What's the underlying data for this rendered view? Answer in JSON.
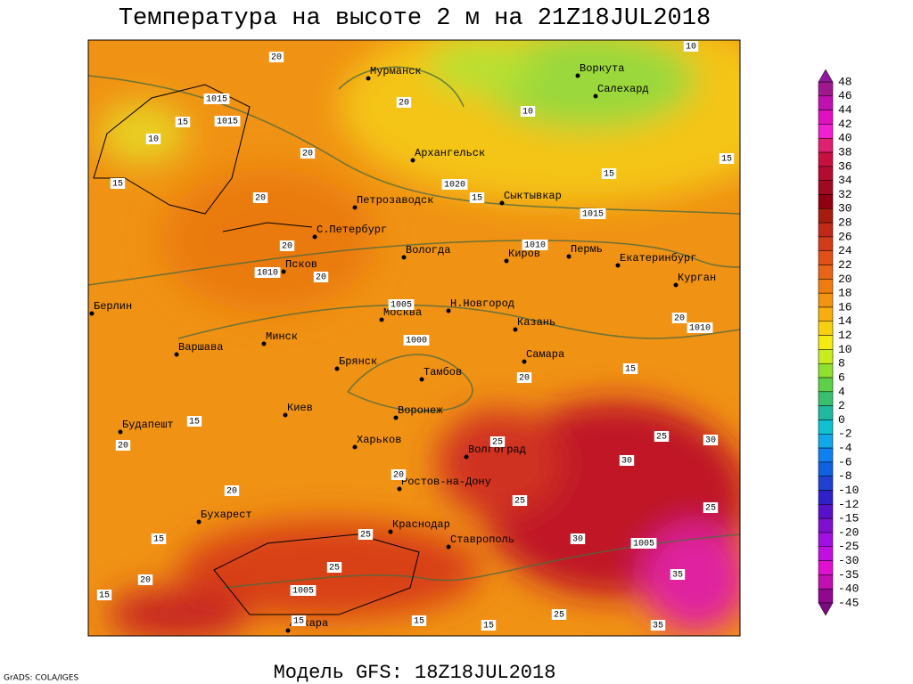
{
  "header": {
    "title": "Температура на высоте 2 м на 21Z18JUL2018"
  },
  "footer": {
    "model": "Модель GFS: 18Z18JUL2018",
    "credit": "GrADS: COLA/IGES"
  },
  "cities": [
    "Мурманск",
    "Воркута",
    "Салехард",
    "Архангельск",
    "Петрозаводск",
    "Сыктывкар",
    "С.Петербург",
    "Вологда",
    "Киров",
    "Пермь",
    "Екатеринбург",
    "Курган",
    "Псков",
    "Берлин",
    "Москва",
    "Н.Новгород",
    "Казань",
    "Минск",
    "Варшава",
    "Самара",
    "Брянск",
    "Тамбов",
    "Киев",
    "Воронеж",
    "Будапешт",
    "Харьков",
    "Волгоград",
    "Ростов-на-Дону",
    "Бухарест",
    "Краснодар",
    "Ставрополь",
    "Анкара"
  ],
  "isobar_labels": [
    1015,
    1015,
    1020,
    1015,
    1010,
    1010,
    1005,
    1000,
    1010,
    1005,
    1005
  ],
  "temperature_labels": [
    20,
    20,
    10,
    10,
    10,
    15,
    20,
    15,
    20,
    15,
    15,
    15,
    20,
    20,
    20,
    15,
    20,
    20,
    15,
    20,
    15,
    15,
    20,
    25,
    25,
    25,
    25,
    30,
    30,
    25,
    30,
    35,
    35,
    25,
    15,
    15,
    15,
    20,
    25
  ],
  "colorbar": {
    "labels": [
      48,
      46,
      44,
      42,
      40,
      38,
      36,
      34,
      32,
      30,
      28,
      26,
      24,
      22,
      20,
      18,
      16,
      14,
      12,
      10,
      8,
      6,
      4,
      2,
      0,
      -2,
      -4,
      -6,
      -8,
      -10,
      -12,
      -15,
      -20,
      -25,
      -30,
      -35,
      -40,
      -45
    ]
  }
}
